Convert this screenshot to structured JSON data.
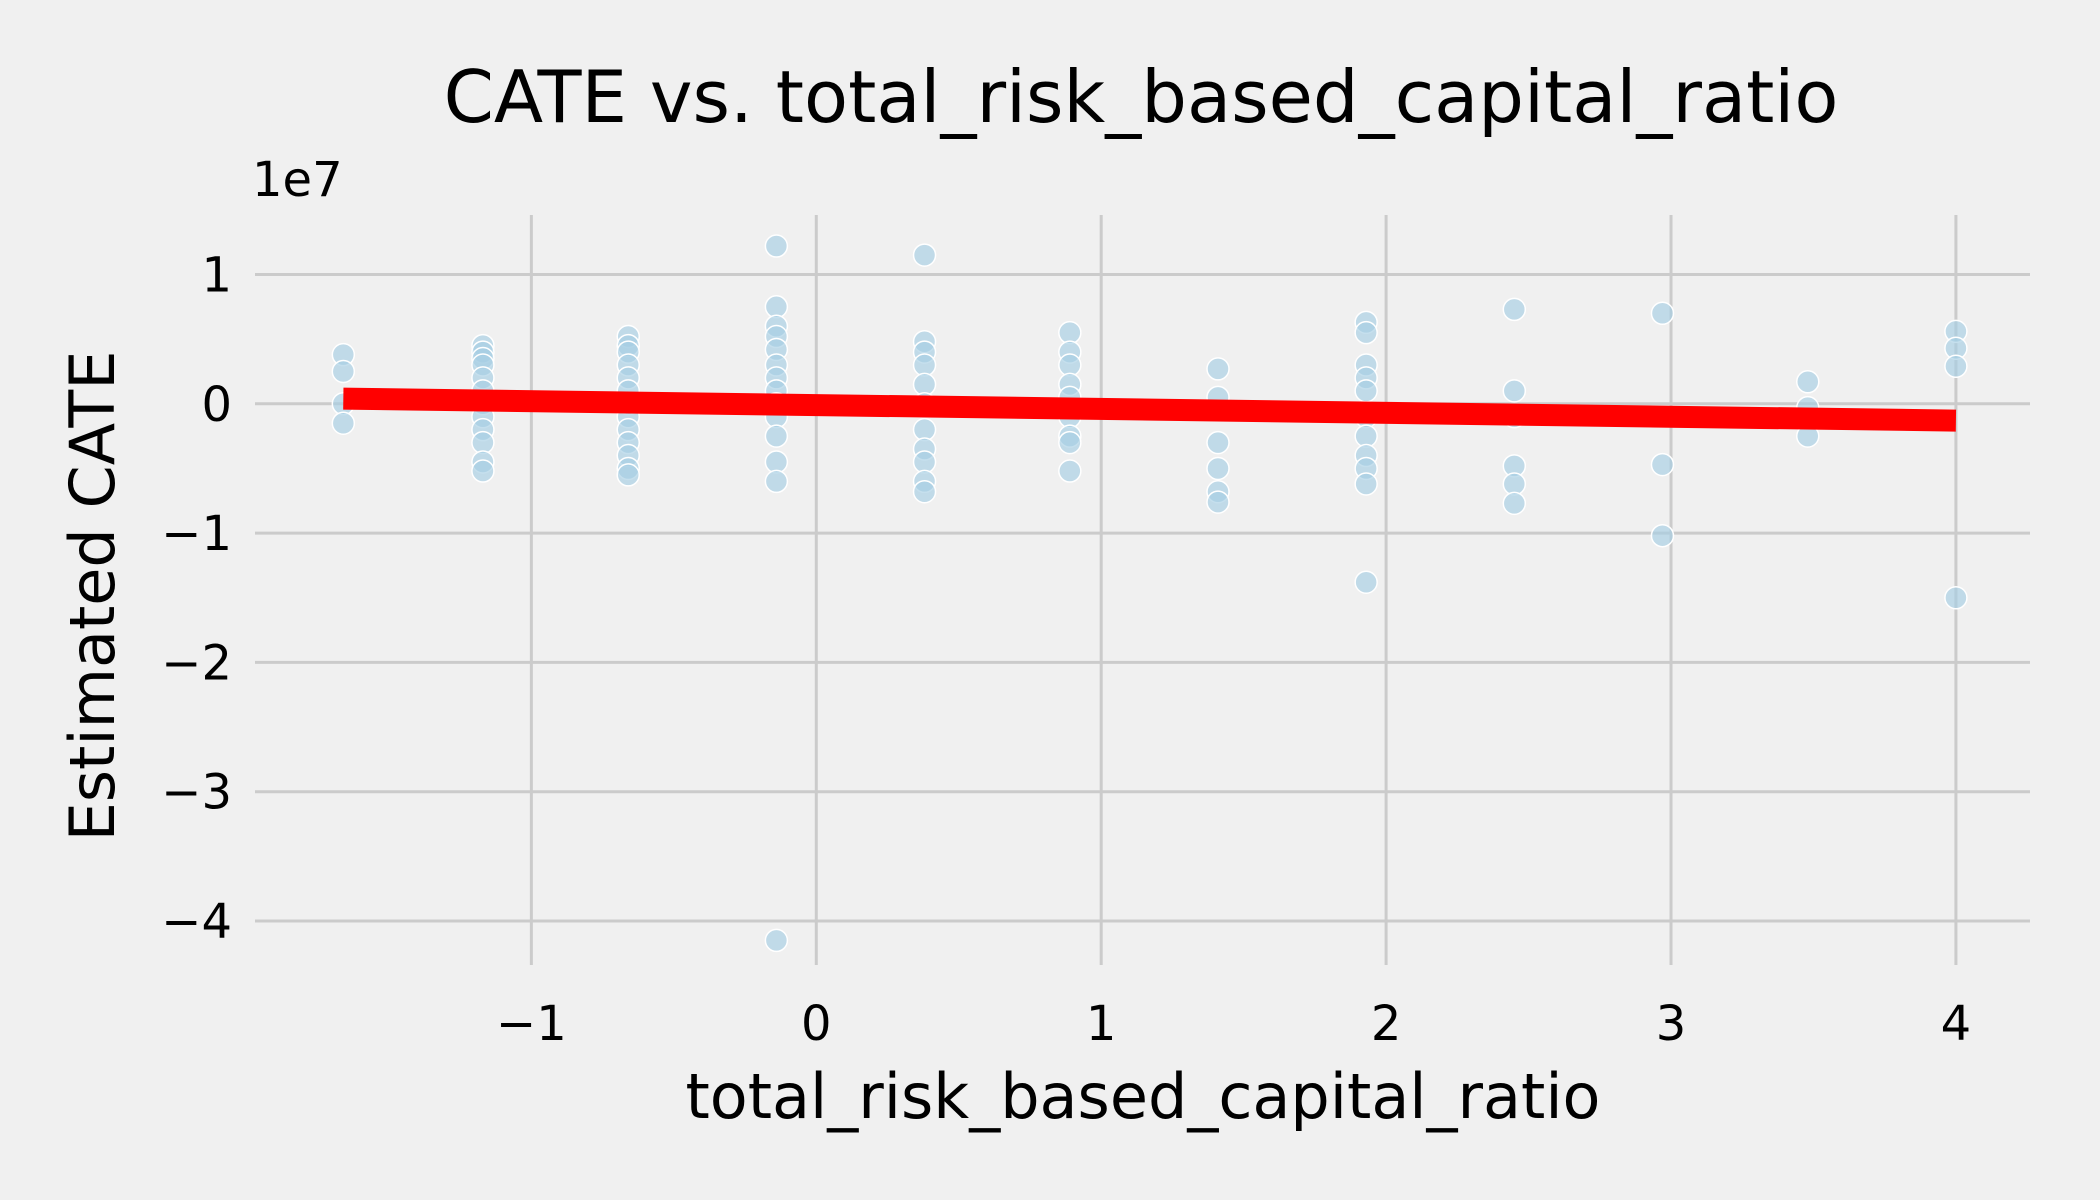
{
  "chart_data": {
    "type": "scatter",
    "title": "CATE vs. total_risk_based_capital_ratio",
    "xlabel": "total_risk_based_capital_ratio",
    "ylabel": "Estimated CATE",
    "y_offset_label": "1e7",
    "xlim": [
      -1.97,
      4.26
    ],
    "ylim": [
      -4.34,
      1.46
    ],
    "xticks": [
      {
        "value": -1,
        "label": "−1"
      },
      {
        "value": 0,
        "label": "0"
      },
      {
        "value": 1,
        "label": "1"
      },
      {
        "value": 2,
        "label": "2"
      },
      {
        "value": 3,
        "label": "3"
      },
      {
        "value": 4,
        "label": "4"
      }
    ],
    "yticks": [
      {
        "value": 1,
        "label": "1"
      },
      {
        "value": 0,
        "label": "0"
      },
      {
        "value": -1,
        "label": "−1"
      },
      {
        "value": -2,
        "label": "−2"
      },
      {
        "value": -3,
        "label": "−3"
      },
      {
        "value": -4,
        "label": "−4"
      }
    ],
    "grid": true,
    "y_unit_multiplier": 10000000,
    "series": [
      {
        "kind": "scatter",
        "color": "#a6cee3",
        "points": [
          [
            -1.66,
            0.38
          ],
          [
            -1.66,
            0.25
          ],
          [
            -1.66,
            0.0
          ],
          [
            -1.66,
            -0.15
          ],
          [
            -1.17,
            0.45
          ],
          [
            -1.17,
            0.4
          ],
          [
            -1.17,
            0.35
          ],
          [
            -1.17,
            0.3
          ],
          [
            -1.17,
            0.2
          ],
          [
            -1.17,
            0.1
          ],
          [
            -1.17,
            0.0
          ],
          [
            -1.17,
            -0.1
          ],
          [
            -1.17,
            -0.2
          ],
          [
            -1.17,
            -0.3
          ],
          [
            -1.17,
            -0.45
          ],
          [
            -1.17,
            -0.52
          ],
          [
            -0.66,
            0.52
          ],
          [
            -0.66,
            0.45
          ],
          [
            -0.66,
            0.4
          ],
          [
            -0.66,
            0.3
          ],
          [
            -0.66,
            0.2
          ],
          [
            -0.66,
            0.1
          ],
          [
            -0.66,
            0.0
          ],
          [
            -0.66,
            -0.1
          ],
          [
            -0.66,
            -0.2
          ],
          [
            -0.66,
            -0.3
          ],
          [
            -0.66,
            -0.4
          ],
          [
            -0.66,
            -0.5
          ],
          [
            -0.66,
            -0.55
          ],
          [
            -0.14,
            1.22
          ],
          [
            -0.14,
            0.75
          ],
          [
            -0.14,
            0.6
          ],
          [
            -0.14,
            0.52
          ],
          [
            -0.14,
            0.42
          ],
          [
            -0.14,
            0.3
          ],
          [
            -0.14,
            0.2
          ],
          [
            -0.14,
            0.1
          ],
          [
            -0.14,
            0.0
          ],
          [
            -0.14,
            -0.1
          ],
          [
            -0.14,
            -0.25
          ],
          [
            -0.14,
            -0.45
          ],
          [
            -0.14,
            -0.6
          ],
          [
            -0.14,
            -4.15
          ],
          [
            0.38,
            1.15
          ],
          [
            0.38,
            0.48
          ],
          [
            0.38,
            0.4
          ],
          [
            0.38,
            0.3
          ],
          [
            0.38,
            0.15
          ],
          [
            0.38,
            0.0
          ],
          [
            0.38,
            -0.2
          ],
          [
            0.38,
            -0.35
          ],
          [
            0.38,
            -0.45
          ],
          [
            0.38,
            -0.6
          ],
          [
            0.38,
            -0.68
          ],
          [
            0.89,
            0.55
          ],
          [
            0.89,
            0.4
          ],
          [
            0.89,
            0.3
          ],
          [
            0.89,
            0.15
          ],
          [
            0.89,
            0.05
          ],
          [
            0.89,
            -0.1
          ],
          [
            0.89,
            -0.25
          ],
          [
            0.89,
            -0.3
          ],
          [
            0.89,
            -0.52
          ],
          [
            1.41,
            0.27
          ],
          [
            1.41,
            0.05
          ],
          [
            1.41,
            -0.3
          ],
          [
            1.41,
            -0.5
          ],
          [
            1.41,
            -0.68
          ],
          [
            1.41,
            -0.76
          ],
          [
            1.93,
            0.63
          ],
          [
            1.93,
            0.55
          ],
          [
            1.93,
            0.3
          ],
          [
            1.93,
            0.2
          ],
          [
            1.93,
            0.1
          ],
          [
            1.93,
            -0.1
          ],
          [
            1.93,
            -0.25
          ],
          [
            1.93,
            -0.4
          ],
          [
            1.93,
            -0.5
          ],
          [
            1.93,
            -0.62
          ],
          [
            1.93,
            -1.38
          ],
          [
            2.45,
            0.73
          ],
          [
            2.45,
            0.1
          ],
          [
            2.45,
            -0.1
          ],
          [
            2.45,
            -0.48
          ],
          [
            2.45,
            -0.62
          ],
          [
            2.45,
            -0.77
          ],
          [
            2.97,
            0.7
          ],
          [
            2.97,
            -0.47
          ],
          [
            2.97,
            -1.02
          ],
          [
            3.48,
            0.17
          ],
          [
            3.48,
            -0.03
          ],
          [
            3.48,
            -0.25
          ],
          [
            4.0,
            0.56
          ],
          [
            4.0,
            0.43
          ],
          [
            4.0,
            0.29
          ],
          [
            4.0,
            -1.5
          ]
        ]
      },
      {
        "kind": "line",
        "color": "#ff0000",
        "x": [
          -1.66,
          4.0
        ],
        "y": [
          0.04,
          -0.13
        ]
      }
    ]
  }
}
